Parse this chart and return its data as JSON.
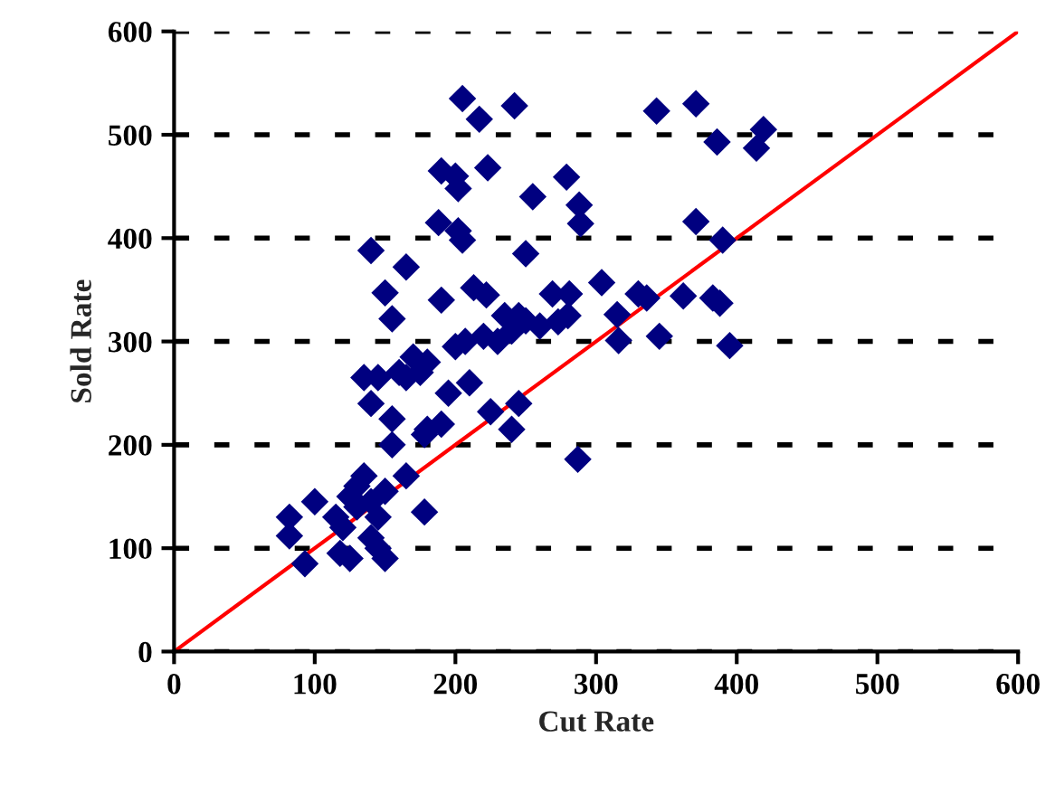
{
  "chart_data": {
    "type": "scatter",
    "xlabel": "Cut Rate",
    "ylabel": "Sold Rate",
    "xlim": [
      0,
      600
    ],
    "ylim": [
      0,
      600
    ],
    "xticks": [
      0,
      100,
      200,
      300,
      400,
      500,
      600
    ],
    "yticks": [
      0,
      100,
      200,
      300,
      400,
      500,
      600
    ],
    "grid": "y",
    "series": [
      {
        "color": "#000080",
        "marker": "diamond",
        "x": [
          205,
          217,
          242,
          190,
          200,
          223,
          202,
          255,
          279,
          288,
          289,
          188,
          202,
          205,
          250,
          140,
          165,
          213,
          222,
          150,
          190,
          304,
          281,
          269,
          273,
          155,
          170,
          160,
          135,
          145,
          165,
          175,
          180,
          200,
          207,
          220,
          230,
          240,
          235,
          245,
          250,
          260,
          280,
          210,
          195,
          190,
          180,
          178,
          155,
          155,
          140,
          165,
          178,
          225,
          240,
          245,
          287,
          135,
          125,
          130,
          140,
          150,
          145,
          140,
          145,
          150,
          120,
          118,
          125,
          100,
          93,
          82,
          82,
          115,
          130,
          343,
          371,
          386,
          419,
          414,
          371,
          390,
          362,
          383,
          388,
          330,
          336,
          315,
          316,
          345,
          395
        ],
        "values": [
          535,
          515,
          528,
          465,
          460,
          468,
          448,
          440,
          459,
          432,
          414,
          415,
          407,
          398,
          385,
          388,
          372,
          352,
          345,
          347,
          340,
          357,
          346,
          346,
          319,
          322,
          285,
          270,
          265,
          265,
          265,
          270,
          280,
          295,
          300,
          305,
          300,
          310,
          325,
          325,
          320,
          315,
          325,
          260,
          250,
          220,
          215,
          210,
          225,
          200,
          240,
          170,
          135,
          232,
          215,
          240,
          186,
          170,
          150,
          140,
          145,
          155,
          130,
          110,
          100,
          90,
          120,
          95,
          90,
          145,
          85,
          130,
          112,
          130,
          160,
          523,
          530,
          493,
          505,
          487,
          416,
          398,
          344,
          342,
          337,
          346,
          342,
          326,
          301,
          305,
          296
        ]
      },
      {
        "type": "line",
        "marker": "none",
        "color": "#ff0000",
        "x": [
          0,
          600
        ],
        "values": [
          0,
          600
        ]
      }
    ]
  }
}
